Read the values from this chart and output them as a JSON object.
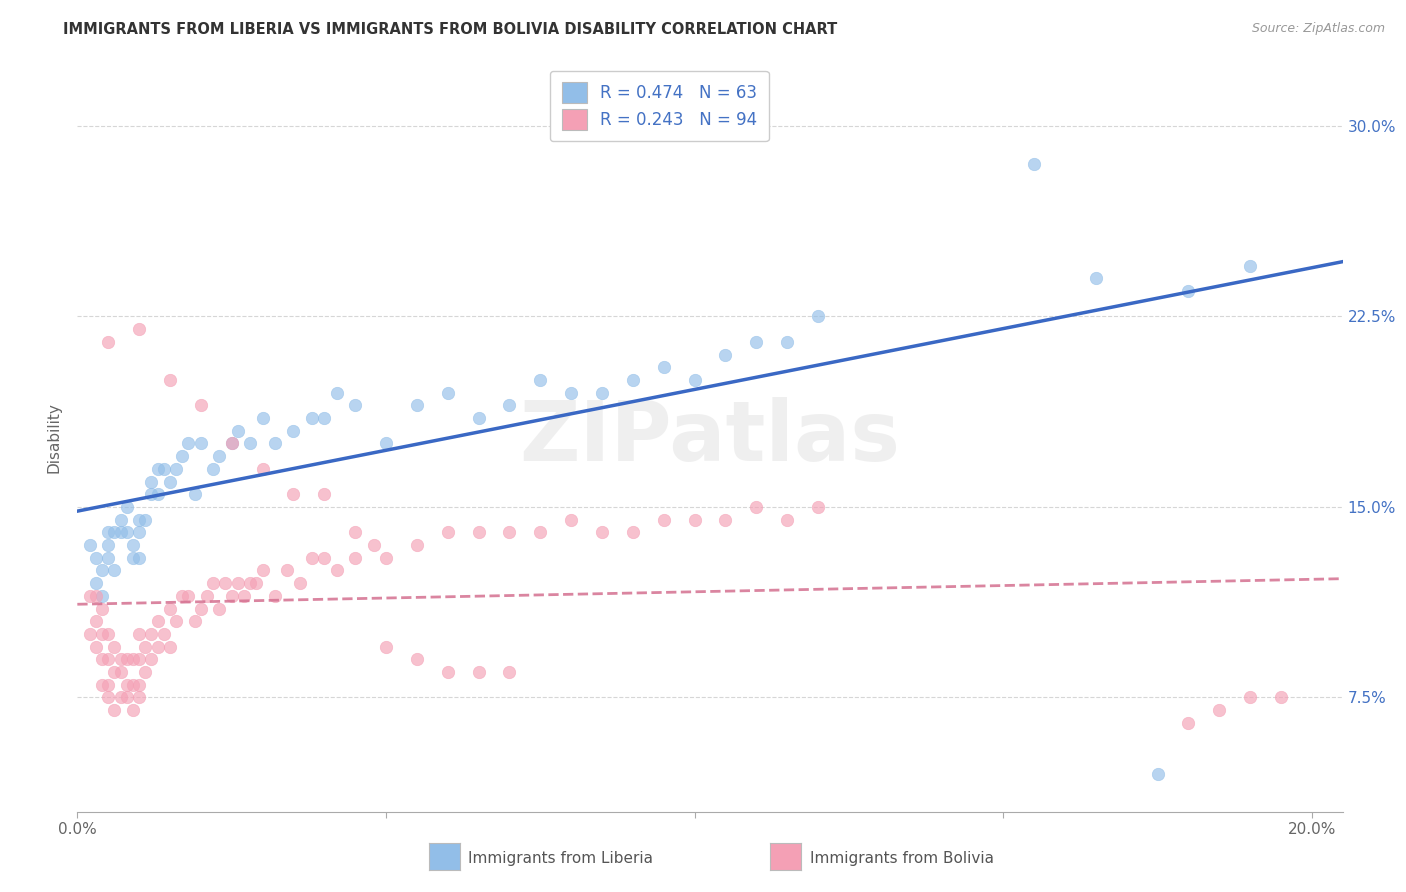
{
  "title": "IMMIGRANTS FROM LIBERIA VS IMMIGRANTS FROM BOLIVIA DISABILITY CORRELATION CHART",
  "source": "Source: ZipAtlas.com",
  "ylabel": "Disability",
  "ytick_vals": [
    0.075,
    0.15,
    0.225,
    0.3
  ],
  "ytick_labels": [
    "7.5%",
    "15.0%",
    "22.5%",
    "30.0%"
  ],
  "xlim": [
    0.0,
    0.205
  ],
  "ylim": [
    0.03,
    0.325
  ],
  "liberia_color": "#92BEE8",
  "bolivia_color": "#F4A0B5",
  "liberia_line_color": "#3A68C4",
  "bolivia_line_color": "#D47090",
  "watermark_text": "ZIPatlas",
  "legend_R_color": "#4472C4",
  "legend_N_color": "#4472C4",
  "liberia_x": [
    0.002,
    0.003,
    0.003,
    0.004,
    0.004,
    0.005,
    0.005,
    0.005,
    0.006,
    0.006,
    0.007,
    0.007,
    0.008,
    0.008,
    0.009,
    0.009,
    0.01,
    0.01,
    0.01,
    0.011,
    0.012,
    0.012,
    0.013,
    0.013,
    0.014,
    0.015,
    0.016,
    0.017,
    0.018,
    0.019,
    0.02,
    0.022,
    0.023,
    0.025,
    0.026,
    0.028,
    0.03,
    0.032,
    0.035,
    0.038,
    0.04,
    0.042,
    0.045,
    0.05,
    0.055,
    0.06,
    0.065,
    0.07,
    0.075,
    0.08,
    0.085,
    0.09,
    0.095,
    0.1,
    0.105,
    0.11,
    0.115,
    0.12,
    0.155,
    0.165,
    0.175,
    0.18,
    0.19
  ],
  "liberia_y": [
    0.135,
    0.12,
    0.13,
    0.115,
    0.125,
    0.13,
    0.135,
    0.14,
    0.125,
    0.14,
    0.14,
    0.145,
    0.14,
    0.15,
    0.13,
    0.135,
    0.14,
    0.145,
    0.13,
    0.145,
    0.155,
    0.16,
    0.155,
    0.165,
    0.165,
    0.16,
    0.165,
    0.17,
    0.175,
    0.155,
    0.175,
    0.165,
    0.17,
    0.175,
    0.18,
    0.175,
    0.185,
    0.175,
    0.18,
    0.185,
    0.185,
    0.195,
    0.19,
    0.175,
    0.19,
    0.195,
    0.185,
    0.19,
    0.2,
    0.195,
    0.195,
    0.2,
    0.205,
    0.2,
    0.21,
    0.215,
    0.215,
    0.225,
    0.285,
    0.24,
    0.045,
    0.235,
    0.245
  ],
  "bolivia_x": [
    0.002,
    0.002,
    0.003,
    0.003,
    0.003,
    0.004,
    0.004,
    0.004,
    0.004,
    0.005,
    0.005,
    0.005,
    0.005,
    0.006,
    0.006,
    0.006,
    0.007,
    0.007,
    0.007,
    0.008,
    0.008,
    0.008,
    0.009,
    0.009,
    0.009,
    0.01,
    0.01,
    0.01,
    0.01,
    0.011,
    0.011,
    0.012,
    0.012,
    0.013,
    0.013,
    0.014,
    0.015,
    0.015,
    0.016,
    0.017,
    0.018,
    0.019,
    0.02,
    0.021,
    0.022,
    0.023,
    0.024,
    0.025,
    0.026,
    0.027,
    0.028,
    0.029,
    0.03,
    0.032,
    0.034,
    0.036,
    0.038,
    0.04,
    0.042,
    0.045,
    0.048,
    0.05,
    0.055,
    0.06,
    0.065,
    0.07,
    0.075,
    0.08,
    0.085,
    0.09,
    0.095,
    0.1,
    0.105,
    0.11,
    0.115,
    0.12,
    0.005,
    0.01,
    0.015,
    0.02,
    0.025,
    0.03,
    0.035,
    0.04,
    0.045,
    0.05,
    0.055,
    0.06,
    0.065,
    0.07,
    0.18,
    0.185,
    0.19,
    0.195
  ],
  "bolivia_y": [
    0.115,
    0.1,
    0.115,
    0.105,
    0.095,
    0.1,
    0.09,
    0.11,
    0.08,
    0.09,
    0.1,
    0.08,
    0.075,
    0.085,
    0.095,
    0.07,
    0.085,
    0.09,
    0.075,
    0.08,
    0.09,
    0.075,
    0.08,
    0.09,
    0.07,
    0.09,
    0.1,
    0.08,
    0.075,
    0.095,
    0.085,
    0.1,
    0.09,
    0.105,
    0.095,
    0.1,
    0.11,
    0.095,
    0.105,
    0.115,
    0.115,
    0.105,
    0.11,
    0.115,
    0.12,
    0.11,
    0.12,
    0.115,
    0.12,
    0.115,
    0.12,
    0.12,
    0.125,
    0.115,
    0.125,
    0.12,
    0.13,
    0.13,
    0.125,
    0.13,
    0.135,
    0.13,
    0.135,
    0.14,
    0.14,
    0.14,
    0.14,
    0.145,
    0.14,
    0.14,
    0.145,
    0.145,
    0.145,
    0.15,
    0.145,
    0.15,
    0.215,
    0.22,
    0.2,
    0.19,
    0.175,
    0.165,
    0.155,
    0.155,
    0.14,
    0.095,
    0.09,
    0.085,
    0.085,
    0.085,
    0.065,
    0.07,
    0.075,
    0.075
  ]
}
